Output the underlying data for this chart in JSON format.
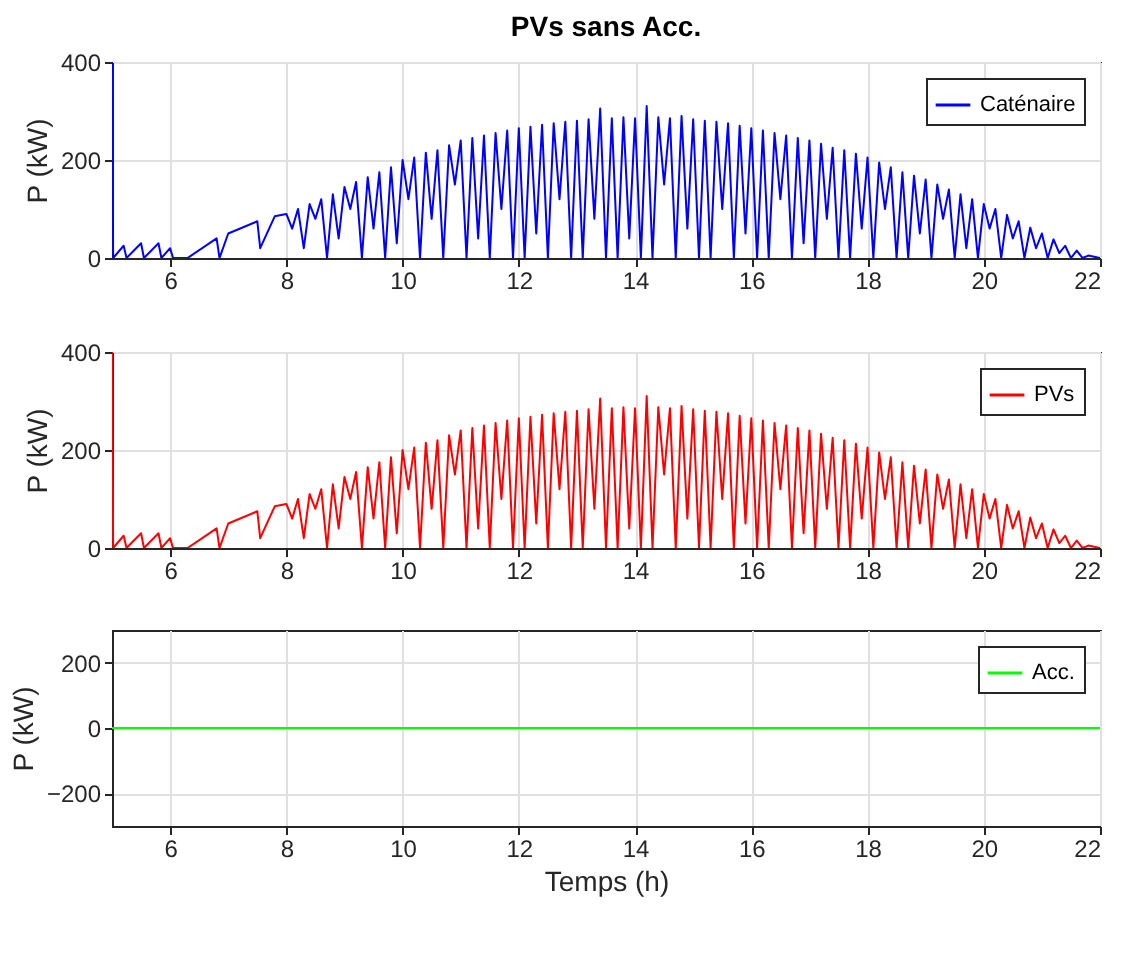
{
  "chart_data": [
    {
      "type": "line",
      "title": "PVs sans Acc.",
      "ylabel": "P (kW)",
      "xlim": [
        5,
        22
      ],
      "xticks": [
        6,
        8,
        10,
        12,
        14,
        16,
        18,
        20,
        22
      ],
      "ylim": [
        0,
        400
      ],
      "yticks": [
        0,
        200,
        400
      ],
      "grid": true,
      "legend": "top right",
      "x": [
        5,
        5.02,
        5.2,
        5.25,
        5.5,
        5.55,
        5.8,
        5.85,
        6.0,
        6.05,
        6.3,
        6.8,
        6.85,
        7.0,
        7.5,
        7.55,
        7.8,
        8.0,
        8.1,
        8.2,
        8.3,
        8.4,
        8.5,
        8.6,
        8.7,
        8.8,
        8.9,
        9.0,
        9.1,
        9.2,
        9.3,
        9.4,
        9.5,
        9.6,
        9.7,
        9.8,
        9.9,
        10.0,
        10.1,
        10.2,
        10.3,
        10.4,
        10.5,
        10.6,
        10.7,
        10.8,
        10.9,
        11.0,
        11.1,
        11.2,
        11.3,
        11.4,
        11.5,
        11.6,
        11.7,
        11.8,
        11.9,
        12.0,
        12.1,
        12.2,
        12.3,
        12.4,
        12.5,
        12.6,
        12.7,
        12.8,
        12.9,
        13.0,
        13.1,
        13.2,
        13.3,
        13.4,
        13.5,
        13.6,
        13.7,
        13.8,
        13.9,
        14.0,
        14.1,
        14.2,
        14.3,
        14.4,
        14.5,
        14.6,
        14.7,
        14.8,
        14.9,
        15.0,
        15.1,
        15.2,
        15.3,
        15.4,
        15.5,
        15.6,
        15.7,
        15.8,
        15.9,
        16.0,
        16.1,
        16.2,
        16.3,
        16.4,
        16.5,
        16.6,
        16.7,
        16.8,
        16.9,
        17.0,
        17.1,
        17.2,
        17.3,
        17.4,
        17.5,
        17.6,
        17.7,
        17.8,
        17.9,
        18.0,
        18.1,
        18.2,
        18.3,
        18.4,
        18.5,
        18.6,
        18.7,
        18.8,
        18.9,
        19.0,
        19.1,
        19.2,
        19.3,
        19.4,
        19.5,
        19.6,
        19.7,
        19.8,
        19.9,
        20.0,
        20.1,
        20.2,
        20.3,
        20.4,
        20.5,
        20.6,
        20.7,
        20.8,
        20.9,
        21.0,
        21.1,
        21.2,
        21.3,
        21.4,
        21.5,
        21.6,
        21.7,
        21.8,
        22
      ],
      "series": [
        {
          "name": "Caténaire",
          "color": "#0000ff",
          "values": [
            400,
            0,
            25,
            0,
            30,
            0,
            30,
            0,
            20,
            0,
            0,
            40,
            0,
            50,
            75,
            20,
            85,
            90,
            60,
            100,
            20,
            110,
            80,
            120,
            0,
            130,
            40,
            145,
            100,
            155,
            0,
            165,
            60,
            175,
            0,
            185,
            30,
            200,
            120,
            205,
            0,
            215,
            80,
            220,
            0,
            230,
            150,
            240,
            0,
            245,
            40,
            250,
            0,
            255,
            100,
            260,
            0,
            265,
            0,
            268,
            50,
            272,
            0,
            275,
            120,
            278,
            0,
            280,
            0,
            283,
            80,
            305,
            0,
            285,
            0,
            287,
            40,
            285,
            0,
            310,
            0,
            287,
            150,
            285,
            0,
            290,
            60,
            283,
            0,
            280,
            0,
            278,
            100,
            275,
            0,
            270,
            50,
            265,
            0,
            260,
            0,
            255,
            120,
            250,
            0,
            245,
            30,
            240,
            0,
            233,
            80,
            225,
            0,
            220,
            0,
            213,
            60,
            205,
            0,
            195,
            100,
            185,
            0,
            175,
            0,
            168,
            50,
            160,
            0,
            150,
            80,
            140,
            0,
            130,
            20,
            120,
            0,
            110,
            60,
            100,
            0,
            88,
            40,
            75,
            0,
            62,
            20,
            50,
            0,
            38,
            10,
            25,
            0,
            15,
            0,
            5,
            0
          ]
        }
      ]
    },
    {
      "type": "line",
      "ylabel": "P (kW)",
      "xlim": [
        5,
        22
      ],
      "xticks": [
        6,
        8,
        10,
        12,
        14,
        16,
        18,
        20,
        22
      ],
      "ylim": [
        0,
        400
      ],
      "yticks": [
        0,
        200,
        400
      ],
      "grid": true,
      "legend": "top right",
      "x": [
        5,
        5.02,
        5.2,
        5.25,
        5.5,
        5.55,
        5.8,
        5.85,
        6.0,
        6.05,
        6.3,
        6.8,
        6.85,
        7.0,
        7.5,
        7.55,
        7.8,
        8.0,
        8.1,
        8.2,
        8.3,
        8.4,
        8.5,
        8.6,
        8.7,
        8.8,
        8.9,
        9.0,
        9.1,
        9.2,
        9.3,
        9.4,
        9.5,
        9.6,
        9.7,
        9.8,
        9.9,
        10.0,
        10.1,
        10.2,
        10.3,
        10.4,
        10.5,
        10.6,
        10.7,
        10.8,
        10.9,
        11.0,
        11.1,
        11.2,
        11.3,
        11.4,
        11.5,
        11.6,
        11.7,
        11.8,
        11.9,
        12.0,
        12.1,
        12.2,
        12.3,
        12.4,
        12.5,
        12.6,
        12.7,
        12.8,
        12.9,
        13.0,
        13.1,
        13.2,
        13.3,
        13.4,
        13.5,
        13.6,
        13.7,
        13.8,
        13.9,
        14.0,
        14.1,
        14.2,
        14.3,
        14.4,
        14.5,
        14.6,
        14.7,
        14.8,
        14.9,
        15.0,
        15.1,
        15.2,
        15.3,
        15.4,
        15.5,
        15.6,
        15.7,
        15.8,
        15.9,
        16.0,
        16.1,
        16.2,
        16.3,
        16.4,
        16.5,
        16.6,
        16.7,
        16.8,
        16.9,
        17.0,
        17.1,
        17.2,
        17.3,
        17.4,
        17.5,
        17.6,
        17.7,
        17.8,
        17.9,
        18.0,
        18.1,
        18.2,
        18.3,
        18.4,
        18.5,
        18.6,
        18.7,
        18.8,
        18.9,
        19.0,
        19.1,
        19.2,
        19.3,
        19.4,
        19.5,
        19.6,
        19.7,
        19.8,
        19.9,
        20.0,
        20.1,
        20.2,
        20.3,
        20.4,
        20.5,
        20.6,
        20.7,
        20.8,
        20.9,
        21.0,
        21.1,
        21.2,
        21.3,
        21.4,
        21.5,
        21.6,
        21.7,
        21.8,
        22
      ],
      "series": [
        {
          "name": "PVs",
          "color": "#ff0000",
          "values": [
            400,
            0,
            25,
            0,
            30,
            0,
            30,
            0,
            20,
            0,
            0,
            40,
            0,
            50,
            75,
            20,
            85,
            90,
            60,
            100,
            20,
            110,
            80,
            120,
            0,
            130,
            40,
            145,
            100,
            155,
            0,
            165,
            60,
            175,
            0,
            185,
            30,
            200,
            120,
            205,
            0,
            215,
            80,
            220,
            0,
            230,
            150,
            240,
            0,
            245,
            40,
            250,
            0,
            255,
            100,
            260,
            0,
            265,
            0,
            268,
            50,
            272,
            0,
            275,
            120,
            278,
            0,
            280,
            0,
            283,
            80,
            305,
            0,
            285,
            0,
            287,
            40,
            285,
            0,
            310,
            0,
            287,
            150,
            285,
            0,
            290,
            60,
            283,
            0,
            280,
            0,
            278,
            100,
            275,
            0,
            270,
            50,
            265,
            0,
            260,
            0,
            255,
            120,
            250,
            0,
            245,
            30,
            240,
            0,
            233,
            80,
            225,
            0,
            220,
            0,
            213,
            60,
            205,
            0,
            195,
            100,
            185,
            0,
            175,
            0,
            168,
            50,
            160,
            0,
            150,
            80,
            140,
            0,
            130,
            20,
            120,
            0,
            110,
            60,
            100,
            0,
            88,
            40,
            75,
            0,
            62,
            20,
            50,
            0,
            38,
            10,
            25,
            0,
            15,
            0,
            5,
            0
          ]
        }
      ]
    },
    {
      "type": "line",
      "xlabel": "Temps (h)",
      "ylabel": "P (kW)",
      "xlim": [
        5,
        22
      ],
      "xticks": [
        6,
        8,
        10,
        12,
        14,
        16,
        18,
        20,
        22
      ],
      "ylim": [
        -300,
        300
      ],
      "yticks": [
        -200,
        0,
        200
      ],
      "grid": true,
      "legend": "top right",
      "x": [
        5,
        22
      ],
      "series": [
        {
          "name": "Acc.",
          "color": "#00ff00",
          "values": [
            0,
            0
          ]
        }
      ]
    }
  ]
}
